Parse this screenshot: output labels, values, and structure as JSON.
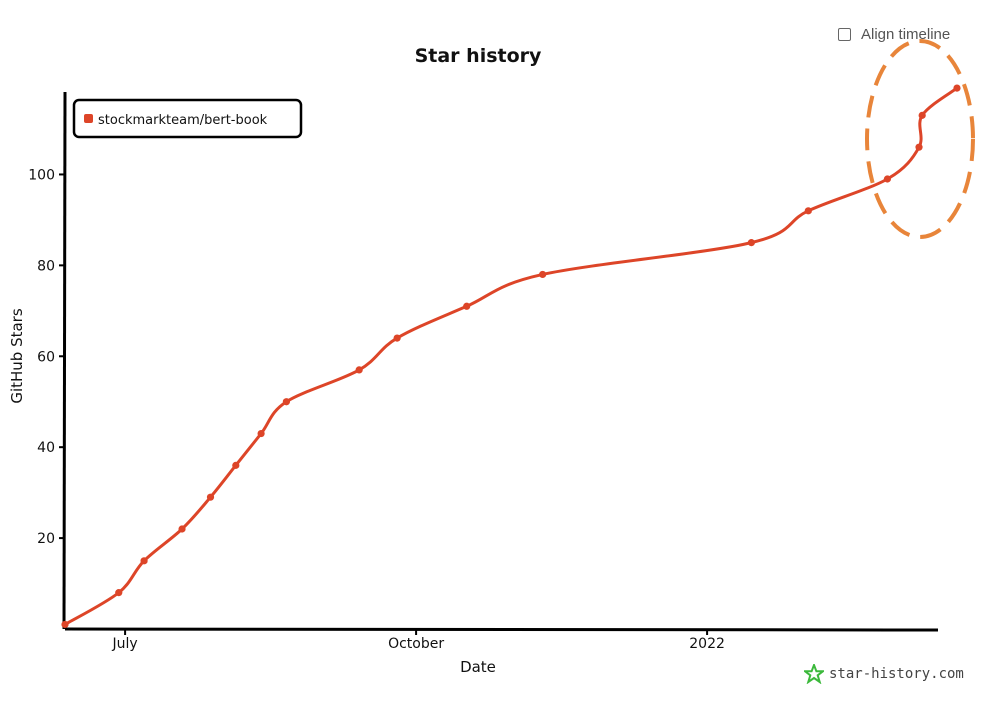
{
  "toggle": {
    "label": "Align timeline",
    "checked": false
  },
  "brand": {
    "text": "star-history.com"
  },
  "colors": {
    "series": "#dd4528",
    "annotation": "#e8853a",
    "brand_icon": "#3cb93c"
  },
  "chart_data": {
    "type": "line",
    "title": "Star history",
    "xlabel": "Date",
    "ylabel": "GitHub Stars",
    "x_ticks": [
      {
        "date": "2021-07-01",
        "label": "July"
      },
      {
        "date": "2021-10-01",
        "label": "October"
      },
      {
        "date": "2022-01-01",
        "label": "2022"
      }
    ],
    "y_ticks": [
      20,
      40,
      60,
      80,
      100
    ],
    "xlim": [
      "2021-06-12",
      "2022-03-15"
    ],
    "ylim": [
      0,
      120
    ],
    "grid": false,
    "legend": {
      "position": "top-left"
    },
    "series": [
      {
        "name": "stockmarkteam/bert-book",
        "points": [
          {
            "x": "2021-06-12",
            "y": 1
          },
          {
            "x": "2021-06-29",
            "y": 8
          },
          {
            "x": "2021-07-07",
            "y": 15
          },
          {
            "x": "2021-07-19",
            "y": 22
          },
          {
            "x": "2021-07-28",
            "y": 29
          },
          {
            "x": "2021-08-05",
            "y": 36
          },
          {
            "x": "2021-08-13",
            "y": 43
          },
          {
            "x": "2021-08-21",
            "y": 50
          },
          {
            "x": "2021-09-13",
            "y": 57
          },
          {
            "x": "2021-09-25",
            "y": 64
          },
          {
            "x": "2021-10-17",
            "y": 71
          },
          {
            "x": "2021-11-10",
            "y": 78
          },
          {
            "x": "2022-01-15",
            "y": 85
          },
          {
            "x": "2022-02-02",
            "y": 92
          },
          {
            "x": "2022-02-27",
            "y": 99
          },
          {
            "x": "2022-03-09",
            "y": 106
          },
          {
            "x": "2022-03-10",
            "y": 113
          },
          {
            "x": "2022-03-21",
            "y": 119
          }
        ]
      }
    ]
  }
}
